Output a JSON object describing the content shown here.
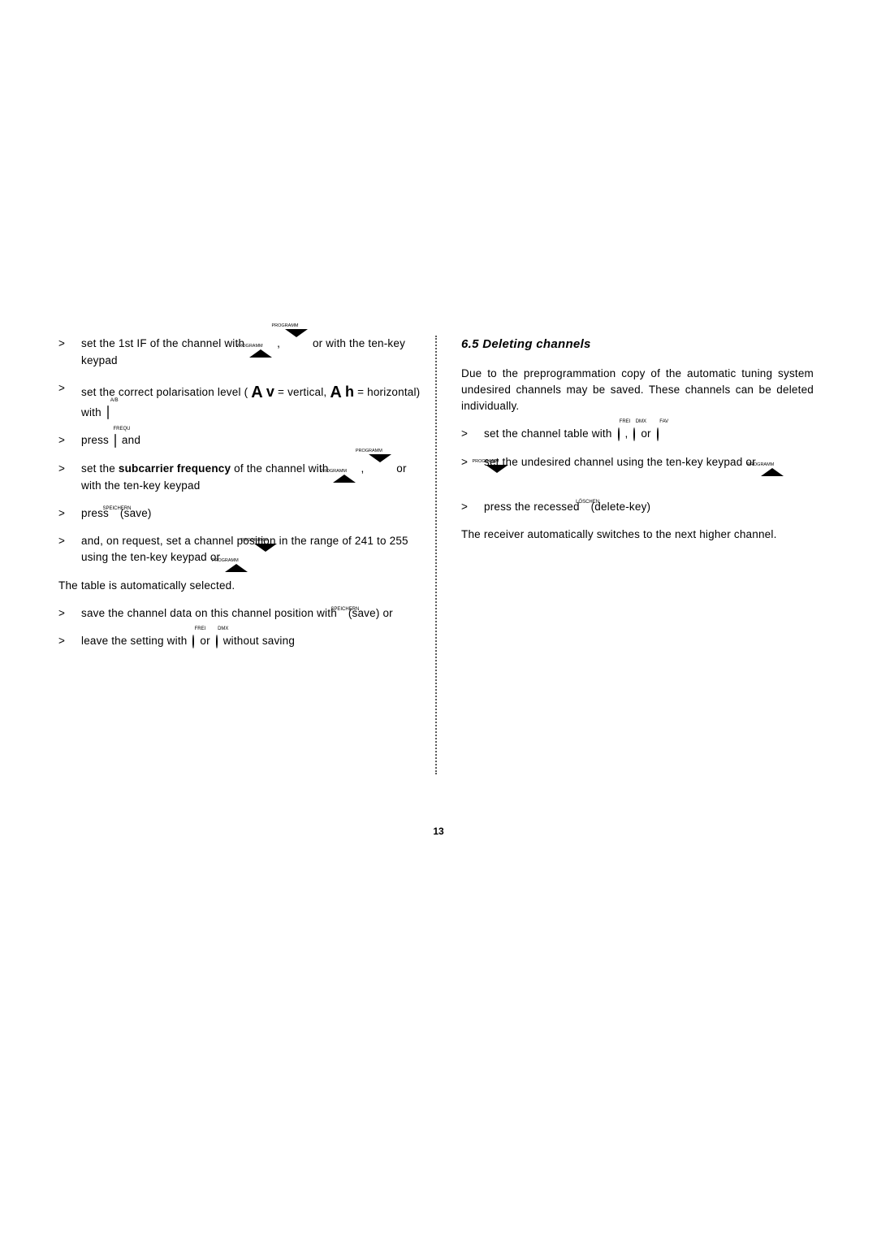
{
  "page_number": "13",
  "left": {
    "items": [
      {
        "pre": "set the 1st IF of the channel with ",
        "icons": [
          "up",
          "comma",
          "dn"
        ],
        "post": " or with the ten-key keypad"
      },
      {
        "pre": "set the correct polarisation level ( ",
        "av": true,
        "post1": " = vertical, ",
        "ah": true,
        "post2": " = horizontal) with ",
        "icons2": [
          "key:A/B"
        ]
      },
      {
        "pre": "press ",
        "icons": [
          "key:FREQU"
        ],
        "post": " and"
      },
      {
        "pre": "set the ",
        "bold": "subcarrier frequency",
        "mid": " of the channel with ",
        "icons": [
          "up",
          "comma",
          "dn"
        ],
        "post": " or with the ten-key keypad",
        "dn_labeled": true
      },
      {
        "pre": "press ",
        "icons": [
          "dot:SPEICHERN"
        ],
        "post": " (save)"
      },
      {
        "pre": "and, on request, set a channel position in the range of  241 to 255 using the ten-key keypad or ",
        "icons": [
          "up",
          "dn"
        ],
        "dn_labeled": true
      }
    ],
    "plain1": "The table is automatically selected.",
    "items2": [
      {
        "pre": "save the channel data on this channel position with ",
        "icons": [
          "dot:SPEICHERN"
        ],
        "post": " (save) or"
      },
      {
        "pre": "leave the setting with ",
        "icons": [
          "circ:FREI"
        ],
        "mid": " or ",
        "icons2": [
          "circ:DMX"
        ],
        "post": " without saving"
      }
    ]
  },
  "right": {
    "title": "6.5 Deleting channels",
    "intro": "Due to the preprogrammation copy of the automatic tuning system undesired channels may be saved. These channels can be deleted individually.",
    "items": [
      {
        "pre": "set the channel table with ",
        "icons": [
          "circ:FREI",
          "comma",
          "circ:DMX"
        ],
        "mid": " or ",
        "icons2": [
          "circ:FAV"
        ]
      },
      {
        "pre": "set the undesired channel using the ten-key keypad or ",
        "icons": [
          "up",
          "dn"
        ],
        "dn_labeled": true
      },
      {
        "pre": "press the recessed ",
        "icons": [
          "dot:LÖSCHEN"
        ],
        "post": " (delete-key)"
      }
    ],
    "outro": "The receiver automatically switches to the next higher channel."
  },
  "labels": {
    "programm": "PROGRAMM",
    "ab": "A/B",
    "frequ": "FREQU",
    "speichern": "SPEICHERN",
    "loeschen": "LÖSCHEN",
    "frei": "FREI",
    "dmx": "DMX",
    "fav": "FAV"
  }
}
